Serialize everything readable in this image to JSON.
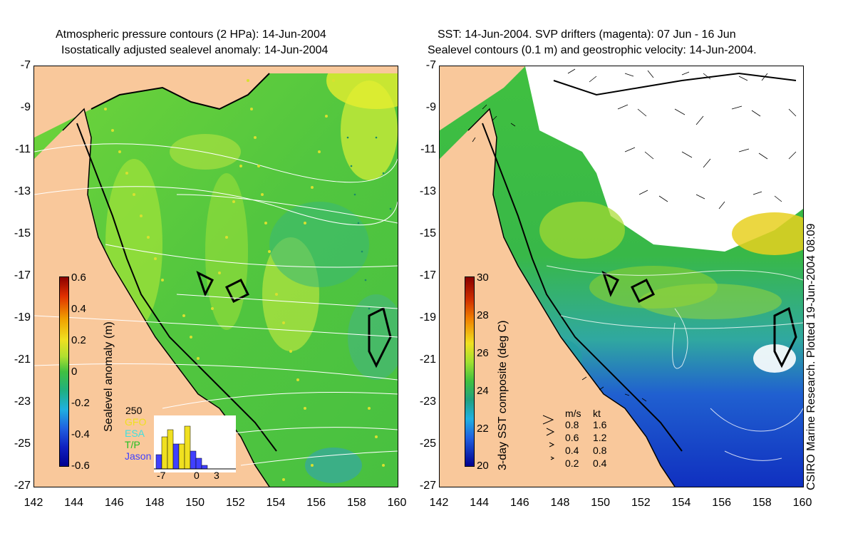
{
  "left_panel": {
    "title_line1": "Atmospheric pressure contours (2 HPa): 14-Jun-2004",
    "title_line2": "Isostatically adjusted sealevel anomaly: 14-Jun-2004",
    "colorbar": {
      "label": "Sealevel anomaly (m)",
      "ticks": [
        "0.6",
        "0.4",
        "0.2",
        "0",
        "-0.2",
        "-0.4",
        "-0.6"
      ]
    },
    "inset": {
      "ymax_label": "250",
      "legend": [
        {
          "name": "GFO",
          "color": "#f0e020"
        },
        {
          "name": "ESA",
          "color": "#40e0e0"
        },
        {
          "name": "T/P",
          "color": "#20c020"
        },
        {
          "name": "Jason",
          "color": "#4040ff"
        }
      ],
      "x_ticks": [
        "-7",
        "0",
        "3"
      ]
    }
  },
  "right_panel": {
    "title_line1": "SST: 14-Jun-2004. SVP drifters (magenta): 07 Jun - 16 Jun",
    "title_line2": "Sealevel contours (0.1 m) and geostrophic velocity: 14-Jun-2004.",
    "colorbar": {
      "label": "3-day SST composite (deg C)",
      "ticks": [
        "30",
        "28",
        "26",
        "24",
        "22",
        "20"
      ]
    },
    "velocity_key": {
      "header_ms": "m/s",
      "header_kt": "kt",
      "rows": [
        {
          "ms": "0.8",
          "kt": "1.6"
        },
        {
          "ms": "0.6",
          "kt": "1.2"
        },
        {
          "ms": "0.4",
          "kt": "0.8"
        },
        {
          "ms": "0.2",
          "kt": "0.4"
        }
      ]
    }
  },
  "axes": {
    "lat_ticks": [
      "-7",
      "-9",
      "-11",
      "-13",
      "-15",
      "-17",
      "-19",
      "-21",
      "-23",
      "-25",
      "-27"
    ],
    "lon_ticks": [
      "142",
      "144",
      "146",
      "148",
      "150",
      "152",
      "154",
      "156",
      "158",
      "160"
    ]
  },
  "credit": "CSIRO Marine Research. Plotted 19-Jun-2004 08:09",
  "colors": {
    "land": "#f9c89b",
    "ocean_green": "#5ed23c",
    "sst_cold": "#1030c0"
  }
}
